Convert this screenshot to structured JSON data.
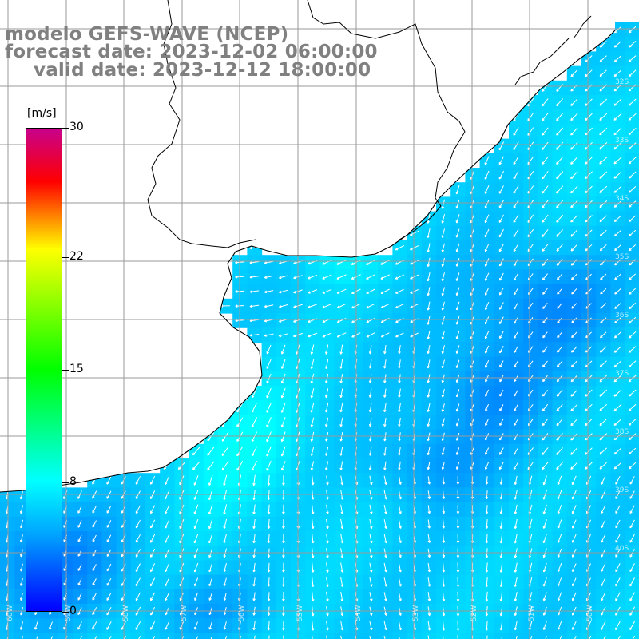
{
  "title": {
    "line1": "modelo GEFS-WAVE (NCEP)",
    "line2": "forecast date: 2023-12-02 06:00:00",
    "line3": "valid date: 2023-12-12 18:00:00"
  },
  "colorbar": {
    "unit": "[m/s]",
    "ticks": [
      "30",
      "22",
      "15",
      "8",
      "0"
    ],
    "tick_values": [
      30,
      22,
      15,
      8,
      0
    ],
    "range": [
      0,
      30
    ],
    "colors": [
      "#0000ff",
      "#00a5ff",
      "#00ffff",
      "#00ff00",
      "#ffff00",
      "#ff0000",
      "#c8008c"
    ]
  },
  "lat_labels": [
    "32S",
    "33S",
    "34S",
    "35S",
    "36S",
    "37S",
    "38S",
    "39S",
    "40S"
  ],
  "lon_labels": [
    "60W",
    "59W",
    "58W",
    "57W",
    "56W",
    "55W",
    "54W",
    "53W",
    "52W",
    "51W",
    "50W"
  ],
  "map_colors": {
    "land": "#ffffff",
    "gridline": "#9a9a9a",
    "coastline": "#000000",
    "arrow": "#ffffff"
  },
  "wind_field": {
    "variable": "wind speed at 10 m",
    "units": "m/s",
    "predominant_direction": "from the northeast (arrows point southwest)",
    "speed_range_estimate": [
      2,
      12
    ]
  }
}
